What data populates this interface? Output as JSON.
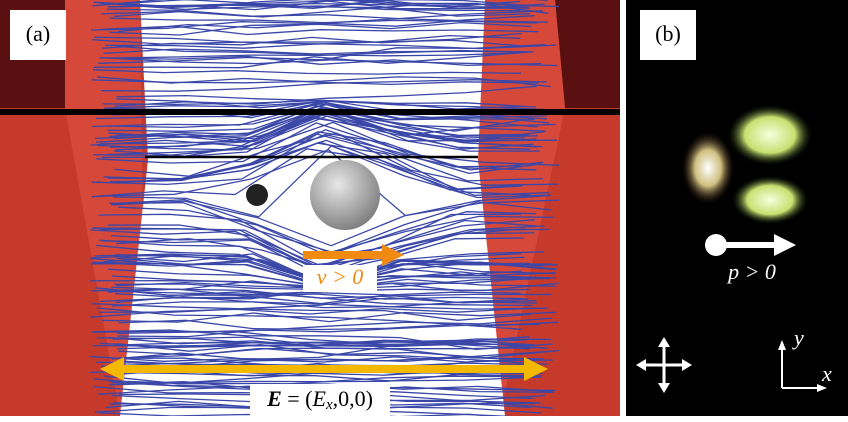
{
  "panel_a": {
    "label": "(a)",
    "velocity_label": "v > 0",
    "field_label": {
      "symbol": "E",
      "equals": " = (",
      "component": "E",
      "subscript": "x",
      "rest": ",0,0)"
    }
  },
  "panel_b": {
    "label": "(b)",
    "polarization_label": "p > 0",
    "axes": {
      "y": "y",
      "x": "x"
    }
  }
}
